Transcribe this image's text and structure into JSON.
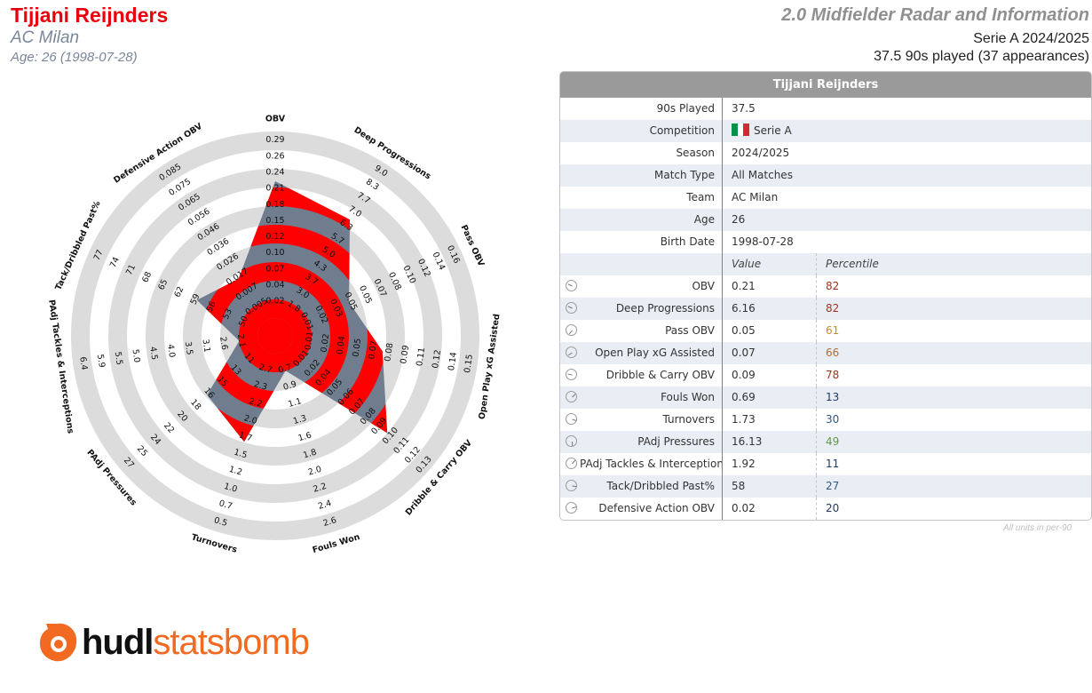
{
  "header": {
    "player_name": "Tijjani Reijnders",
    "club": "AC Milan",
    "age_line": "Age: 26 (1998-07-28)",
    "report_title": "2.0 Midfielder Radar and Information",
    "league_season": "Serie A 2024/2025",
    "played_line": "37.5 90s played (37 appearances)"
  },
  "colors": {
    "name": "#e8000b",
    "radar_fill": "#ff0000",
    "radar_grey": "#6f7d8f",
    "ring": "#dcdcdc",
    "brand": "#f26a21"
  },
  "chart_data": {
    "type": "radar",
    "metrics": [
      {
        "label": "OBV",
        "ticks": [
          "0.02",
          "0.04",
          "0.07",
          "0.10",
          "0.12",
          "0.15",
          "0.18",
          "0.21",
          "0.24",
          "0.26",
          "0.29"
        ],
        "value": 0.21
      },
      {
        "label": "Deep Progressions",
        "ticks": [
          "1.8",
          "3.0",
          "3.7",
          "4.3",
          "5.0",
          "5.7",
          "6.3",
          "7.0",
          "7.7",
          "8.3",
          "9.0"
        ],
        "value": 6.16
      },
      {
        "label": "Pass OBV",
        "ticks": [
          "0.01",
          "0.02",
          "0.03",
          "0.05",
          "0.05",
          "0.07",
          "0.08",
          "0.10",
          "0.12",
          "0.14",
          "0.16"
        ],
        "value": 0.05
      },
      {
        "label": "Open Play xG Assisted",
        "ticks": [
          "0.01",
          "0.02",
          "0.04",
          "0.05",
          "0.07",
          "0.08",
          "0.09",
          "0.11",
          "0.12",
          "0.14",
          "0.15"
        ],
        "value": 0.07
      },
      {
        "label": "Dribble & Carry OBV",
        "ticks": [
          "0.01",
          "0.02",
          "0.04",
          "0.05",
          "0.06",
          "0.07",
          "0.08",
          "0.09",
          "0.10",
          "0.11",
          "0.12",
          "0.13"
        ],
        "value": 0.09
      },
      {
        "label": "Fouls Won",
        "ticks": [
          "0.7",
          "0.9",
          "1.1",
          "1.3",
          "1.6",
          "1.8",
          "2.0",
          "2.2",
          "2.4",
          "2.6"
        ],
        "value": 0.69
      },
      {
        "label": "Turnovers",
        "ticks": [
          "2.7",
          "2.3",
          "2.2",
          "2.0",
          "1.7",
          "1.5",
          "1.2",
          "1.0",
          "0.7",
          "0.5"
        ],
        "value": 1.73
      },
      {
        "label": "PAdj Pressures",
        "ticks": [
          "11",
          "13",
          "15",
          "16",
          "18",
          "20",
          "22",
          "24",
          "25",
          "27"
        ],
        "value": 16.13
      },
      {
        "label": "PAdj Tackles & Interceptions",
        "ticks": [
          "2.1",
          "2.6",
          "3.1",
          "3.5",
          "4.0",
          "4.5",
          "5.0",
          "5.5",
          "5.9",
          "6.4"
        ],
        "value": 1.92
      },
      {
        "label": "Tack/Dribbled Past%",
        "ticks": [
          "50",
          "53",
          "56",
          "59",
          "62",
          "65",
          "68",
          "71",
          "74",
          "77"
        ],
        "value": 58
      },
      {
        "label": "Defensive Action OBV",
        "ticks": [
          "0.005",
          "0.007",
          "0.017",
          "0.026",
          "0.036",
          "0.046",
          "0.056",
          "0.065",
          "0.075",
          "0.085"
        ],
        "value": 0.02
      }
    ]
  },
  "table": {
    "title": "Tijjani Reijnders",
    "info_rows": [
      {
        "label": "90s Played",
        "value": "37.5"
      },
      {
        "label": "Competition",
        "value": "Serie A",
        "flag": [
          "#009246",
          "#ffffff",
          "#ce2b37"
        ]
      },
      {
        "label": "Season",
        "value": "2024/2025"
      },
      {
        "label": "Match Type",
        "value": "All Matches"
      },
      {
        "label": "Team",
        "value": "AC Milan"
      },
      {
        "label": "Age",
        "value": "26"
      },
      {
        "label": "Birth Date",
        "value": "1998-07-28"
      }
    ],
    "value_header": "Value",
    "percentile_header": "Percentile",
    "metric_rows": [
      {
        "label": "OBV",
        "value": "0.21",
        "percentile": "82",
        "pct_color": "#a5321c"
      },
      {
        "label": "Deep Progressions",
        "value": "6.16",
        "percentile": "82",
        "pct_color": "#a5321c"
      },
      {
        "label": "Pass OBV",
        "value": "0.05",
        "percentile": "61",
        "pct_color": "#c98a1e"
      },
      {
        "label": "Open Play xG Assisted",
        "value": "0.07",
        "percentile": "66",
        "pct_color": "#c46a1e"
      },
      {
        "label": "Dribble & Carry OBV",
        "value": "0.09",
        "percentile": "78",
        "pct_color": "#a5321c"
      },
      {
        "label": "Fouls Won",
        "value": "0.69",
        "percentile": "13",
        "pct_color": "#203a6b"
      },
      {
        "label": "Turnovers",
        "value": "1.73",
        "percentile": "30",
        "pct_color": "#2e5a85"
      },
      {
        "label": "PAdj Pressures",
        "value": "16.13",
        "percentile": "49",
        "pct_color": "#5b9a4a"
      },
      {
        "label": "PAdj Tackles & Interceptions",
        "value": "1.92",
        "percentile": "11",
        "pct_color": "#203a6b"
      },
      {
        "label": "Tack/Dribbled Past%",
        "value": "58",
        "percentile": "27",
        "pct_color": "#2e5a85"
      },
      {
        "label": "Defensive Action OBV",
        "value": "0.02",
        "percentile": "20",
        "pct_color": "#203a6b"
      }
    ],
    "note": "All units in per-90"
  },
  "logo": {
    "text_main": "hudl",
    "text_accent": "statsbomb"
  }
}
